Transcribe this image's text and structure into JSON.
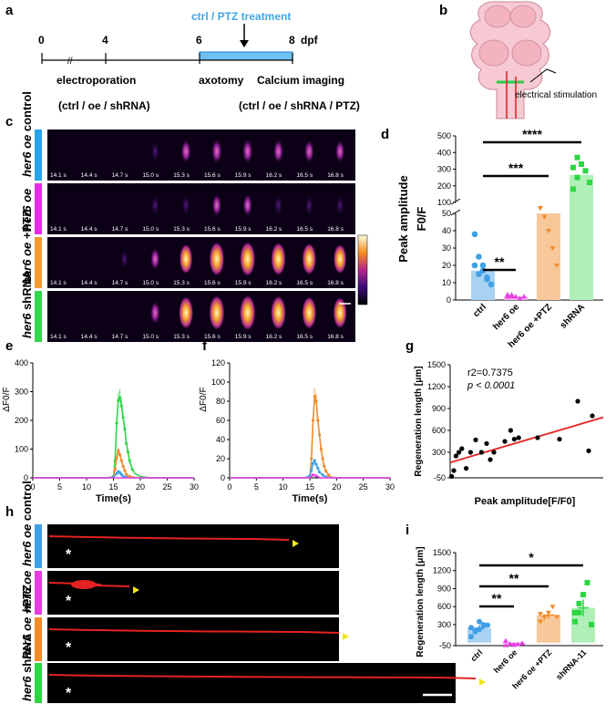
{
  "panels": {
    "a": {
      "label": "a",
      "treatment": "ctrl / PTZ treatment",
      "ticks": [
        "0",
        "4",
        "6",
        "8"
      ],
      "unit": "dpf",
      "events": [
        "electroporation",
        "axotomy",
        "Calcium imaging"
      ],
      "groups_left": "(ctrl / oe / shRNA)",
      "groups_right": "(ctrl / oe / shRNA / PTZ)"
    },
    "b": {
      "label": "b",
      "stim": "electrical stimulation"
    },
    "c": {
      "label": "c",
      "rows": [
        {
          "name": "control",
          "prefix": "her6 oe",
          "color": "#29a3e8"
        },
        {
          "name": "",
          "prefix": "her6 oe",
          "color": "#e62de6"
        },
        {
          "name": "+PTZ",
          "prefix": "her6 oe",
          "color": "#f39b34"
        },
        {
          "name": "shRNA",
          "prefix": "her6",
          "color": "#35d64f"
        }
      ],
      "timestamps": [
        "14.1 s",
        "14.4 s",
        "14.7 s",
        "15.0 s",
        "15.3 s",
        "15.6 s",
        "15.9 s",
        "16.2 s",
        "16.5 s",
        "16.8 s"
      ]
    },
    "d": {
      "label": "d"
    },
    "e": {
      "label": "e"
    },
    "f": {
      "label": "f"
    },
    "g": {
      "label": "g"
    },
    "h": {
      "label": "h",
      "rows": [
        {
          "name": "control",
          "prefix": "her6 oe"
        },
        {
          "name": "",
          "prefix": "her6 oe"
        },
        {
          "name": "+PTZ",
          "prefix": "her6 oe"
        },
        {
          "name": "shRNA",
          "prefix": "her6"
        }
      ]
    },
    "i": {
      "label": "i"
    }
  },
  "colors": {
    "ctrl": "#3fa0e6",
    "oe": "#e63de0",
    "ptz": "#f08c2b",
    "shrna": "#2ed645",
    "red": "#e52222"
  },
  "chart_data": [
    {
      "id": "d",
      "type": "bar",
      "categories": [
        "ctrl",
        "her6 oe",
        "her6 oe +PTZ",
        "shRNA"
      ],
      "values": [
        17,
        2,
        50,
        265
      ],
      "errors": [
        3,
        1,
        1,
        30
      ],
      "ylabel": "Peak amplitude F0/F",
      "yticks_lower": [
        0,
        10,
        20,
        30,
        40,
        50
      ],
      "yticks_upper": [
        100,
        200,
        300,
        400,
        500
      ],
      "points": [
        [
          20,
          15,
          17,
          12,
          9,
          38,
          25,
          20,
          13
        ],
        [
          2,
          3,
          2,
          1,
          2,
          3,
          2
        ],
        [
          52,
          48,
          40,
          30,
          20,
          54
        ],
        [
          310,
          370,
          330,
          290,
          220,
          180,
          250
        ]
      ],
      "significance": [
        "**",
        "***",
        "****"
      ]
    },
    {
      "id": "e",
      "type": "line",
      "xlabel": "Time(s)",
      "ylabel": "ΔF0/F",
      "xlim": [
        0,
        30
      ],
      "ylim": [
        0,
        400
      ],
      "xticks": [
        0,
        5,
        10,
        15,
        20,
        25,
        30
      ],
      "yticks": [
        0,
        100,
        200,
        300,
        400
      ],
      "series": [
        {
          "color": "#2ed645",
          "x": [
            0,
            14,
            15,
            15.3,
            15.6,
            15.9,
            16.2,
            16.5,
            16.8,
            17.1,
            17.4,
            17.7,
            18,
            18.5,
            19,
            20,
            21,
            22,
            30
          ],
          "y": [
            0,
            0,
            5,
            60,
            190,
            270,
            280,
            250,
            210,
            170,
            120,
            90,
            60,
            30,
            15,
            5,
            2,
            0,
            0
          ]
        },
        {
          "color": "#f08c2b",
          "x": [
            0,
            14,
            15,
            15.3,
            15.6,
            15.9,
            16.2,
            16.5,
            16.8,
            17.1,
            17.4,
            18,
            19,
            20,
            30
          ],
          "y": [
            0,
            0,
            3,
            30,
            70,
            95,
            80,
            60,
            40,
            25,
            12,
            5,
            2,
            0,
            0
          ]
        },
        {
          "color": "#3fa0e6",
          "x": [
            0,
            14,
            15,
            15.6,
            15.9,
            16.2,
            16.5,
            16.8,
            17.4,
            18,
            30
          ],
          "y": [
            0,
            0,
            2,
            15,
            22,
            18,
            12,
            6,
            2,
            0,
            0
          ]
        },
        {
          "color": "#e63de0",
          "x": [
            0,
            30
          ],
          "y": [
            0,
            0
          ]
        }
      ]
    },
    {
      "id": "f",
      "type": "line",
      "xlabel": "Time(s)",
      "ylabel": "ΔF0/F",
      "xlim": [
        0,
        30
      ],
      "ylim": [
        0,
        120
      ],
      "xticks": [
        0,
        5,
        10,
        15,
        20,
        25,
        30
      ],
      "yticks": [
        0,
        20,
        40,
        60,
        80,
        100,
        120
      ],
      "series": [
        {
          "color": "#f08c2b",
          "x": [
            0,
            14,
            15,
            15.3,
            15.6,
            15.9,
            16.2,
            16.5,
            16.8,
            17.1,
            17.4,
            17.7,
            18,
            18.5,
            19,
            20,
            30
          ],
          "y": [
            0,
            0,
            2,
            20,
            60,
            85,
            80,
            60,
            45,
            30,
            20,
            12,
            7,
            3,
            1,
            0,
            0
          ]
        },
        {
          "color": "#3fa0e6",
          "x": [
            0,
            14,
            15,
            15.3,
            15.6,
            15.9,
            16.2,
            16.5,
            16.8,
            17.4,
            18,
            19,
            30
          ],
          "y": [
            0,
            0,
            2,
            8,
            15,
            18,
            14,
            10,
            6,
            3,
            1,
            0,
            0
          ]
        },
        {
          "color": "#e63de0",
          "x": [
            0,
            15,
            15.6,
            16.2,
            17,
            30
          ],
          "y": [
            0,
            0,
            3,
            2,
            0,
            0
          ]
        }
      ]
    },
    {
      "id": "g",
      "type": "scatter",
      "xlabel": "Peak amplitude[F/F0]",
      "ylabel": "Regeneration length [μm]",
      "ylim": [
        -50,
        1500
      ],
      "yticks": [
        -50,
        300,
        600,
        900,
        1200,
        1500
      ],
      "annotation": [
        "r2=0.7375",
        "p < 0.0001"
      ],
      "x": [
        0.2,
        0.5,
        0.8,
        1.2,
        1.6,
        2.2,
        2.8,
        3.5,
        4.3,
        5.0,
        5.5,
        6.0,
        7.5,
        8.3,
        8.8,
        9.4,
        12.0,
        15.0,
        17.5,
        19.5,
        19.0
      ],
      "y": [
        -30,
        50,
        250,
        300,
        350,
        80,
        300,
        470,
        300,
        420,
        200,
        300,
        450,
        600,
        480,
        500,
        500,
        480,
        1000,
        800,
        320
      ],
      "fit": {
        "x": [
          0,
          21
        ],
        "y": [
          160,
          780
        ]
      }
    },
    {
      "id": "i",
      "type": "bar",
      "categories": [
        "ctrl",
        "her6 oe",
        "her6 oe +PTZ",
        "shRNA-11"
      ],
      "values": [
        240,
        -20,
        460,
        580
      ],
      "errors": [
        50,
        20,
        60,
        140
      ],
      "ylabel": "Regeneration length [μm]",
      "ylim": [
        -50,
        1500
      ],
      "yticks": [
        -50,
        300,
        600,
        900,
        1200,
        1500
      ],
      "points": [
        [
          100,
          180,
          220,
          300,
          290,
          250,
          200,
          350,
          280
        ],
        [
          30,
          -20,
          -40,
          -30,
          -10,
          -45
        ],
        [
          350,
          420,
          500,
          600,
          430,
          480
        ],
        [
          350,
          500,
          800,
          1000,
          300,
          500,
          650
        ]
      ],
      "significance": [
        "**",
        "**",
        "*"
      ]
    }
  ]
}
